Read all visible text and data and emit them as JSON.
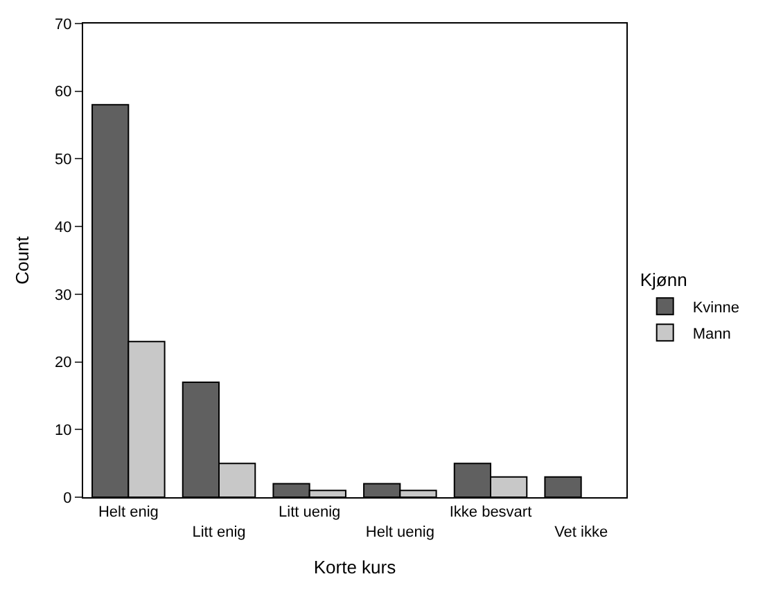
{
  "chart_data": {
    "type": "bar",
    "xlabel": "Korte kurs",
    "ylabel": "Count",
    "legend_title": "Kjønn",
    "categories": [
      "Helt enig",
      "Litt enig",
      "Litt uenig",
      "Helt uenig",
      "Ikke besvart",
      "Vet ikke"
    ],
    "series": [
      {
        "name": "Kvinne",
        "color": "#606060",
        "values": [
          58,
          17,
          2,
          2,
          5,
          3
        ]
      },
      {
        "name": "Mann",
        "color": "#c8c8c8",
        "values": [
          23,
          5,
          1,
          1,
          3,
          0
        ]
      }
    ],
    "ylim": [
      0,
      70
    ],
    "yticks": [
      0,
      10,
      20,
      30,
      40,
      50,
      60,
      70
    ],
    "legend": "right"
  }
}
